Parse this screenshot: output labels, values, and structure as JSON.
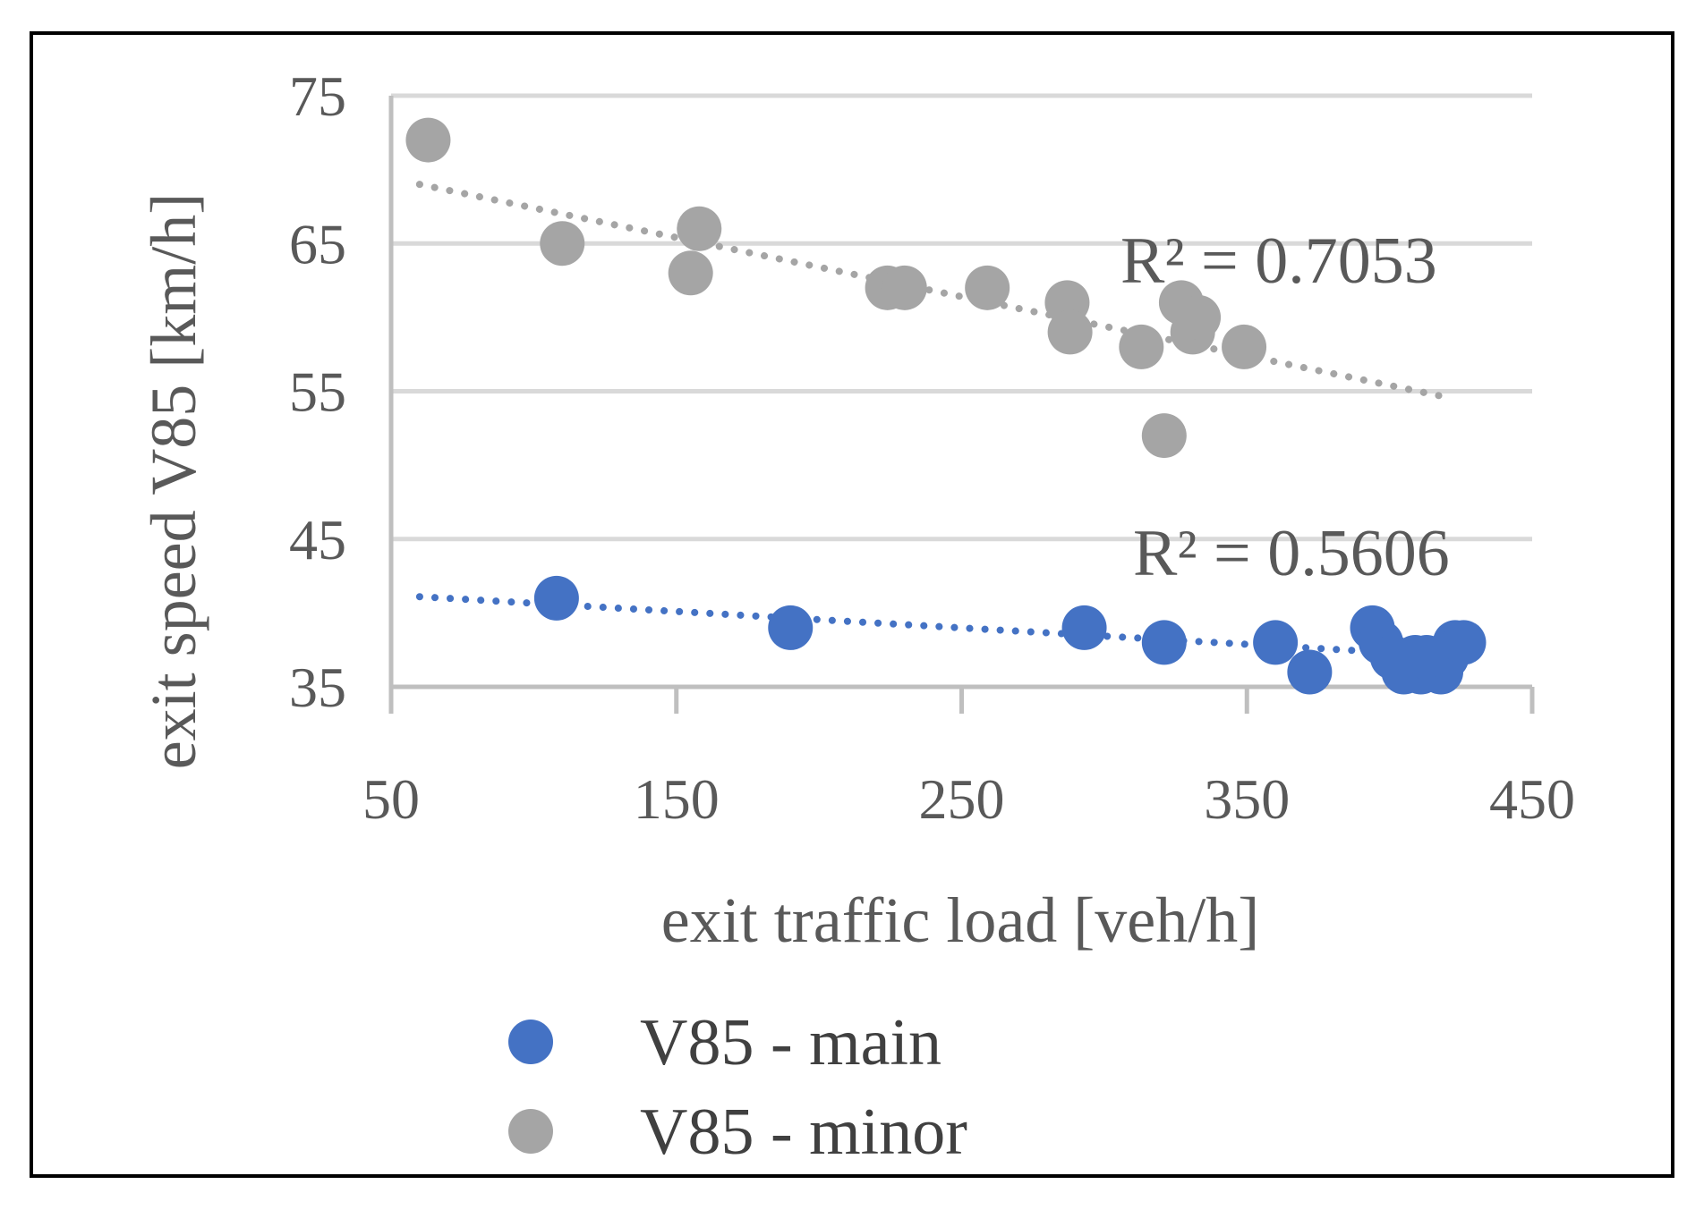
{
  "colors": {
    "main": "#4472c4",
    "minor": "#a5a5a5",
    "grid": "#d9d9d9",
    "axis": "#bfbfbf",
    "text": "#595959"
  },
  "chart_data": {
    "type": "scatter",
    "title": "",
    "xlabel": "exit traffic load [veh/h]",
    "ylabel": "exit speed V85 [km/h]",
    "xlim": [
      50,
      450
    ],
    "ylim": [
      35,
      75
    ],
    "x_ticks": [
      "50",
      "150",
      "250",
      "350",
      "450"
    ],
    "y_ticks": [
      "35",
      "45",
      "55",
      "65",
      "75"
    ],
    "grid": "horizontal",
    "legend_position": "bottom",
    "series": [
      {
        "name": "V85 - main",
        "color": "#4472c4",
        "points": [
          [
            108,
            41
          ],
          [
            190,
            39
          ],
          [
            293,
            39
          ],
          [
            321,
            38
          ],
          [
            360,
            38
          ],
          [
            372,
            36
          ],
          [
            394,
            39
          ],
          [
            397,
            38
          ],
          [
            401,
            37
          ],
          [
            405,
            36
          ],
          [
            409,
            37
          ],
          [
            411,
            36
          ],
          [
            413,
            37
          ],
          [
            418,
            36
          ],
          [
            420,
            37
          ],
          [
            423,
            38
          ],
          [
            426,
            38
          ]
        ],
        "trendline": {
          "type": "linear",
          "x": [
            60,
            420
          ],
          "y": [
            41.1,
            37.1
          ],
          "r2_label": "R² = 0.5606"
        }
      },
      {
        "name": "V85 - minor",
        "color": "#a5a5a5",
        "points": [
          [
            63,
            72
          ],
          [
            110,
            65
          ],
          [
            155,
            63
          ],
          [
            158,
            66
          ],
          [
            224,
            62
          ],
          [
            230,
            62
          ],
          [
            259,
            62
          ],
          [
            287,
            61
          ],
          [
            288,
            59
          ],
          [
            313,
            58
          ],
          [
            321,
            52
          ],
          [
            327,
            61
          ],
          [
            331,
            59
          ],
          [
            333,
            60
          ],
          [
            349,
            58
          ]
        ],
        "trendline": {
          "type": "linear",
          "x": [
            60,
            420
          ],
          "y": [
            69.0,
            54.6
          ],
          "r2_label": "R² = 0.7053"
        }
      }
    ]
  }
}
